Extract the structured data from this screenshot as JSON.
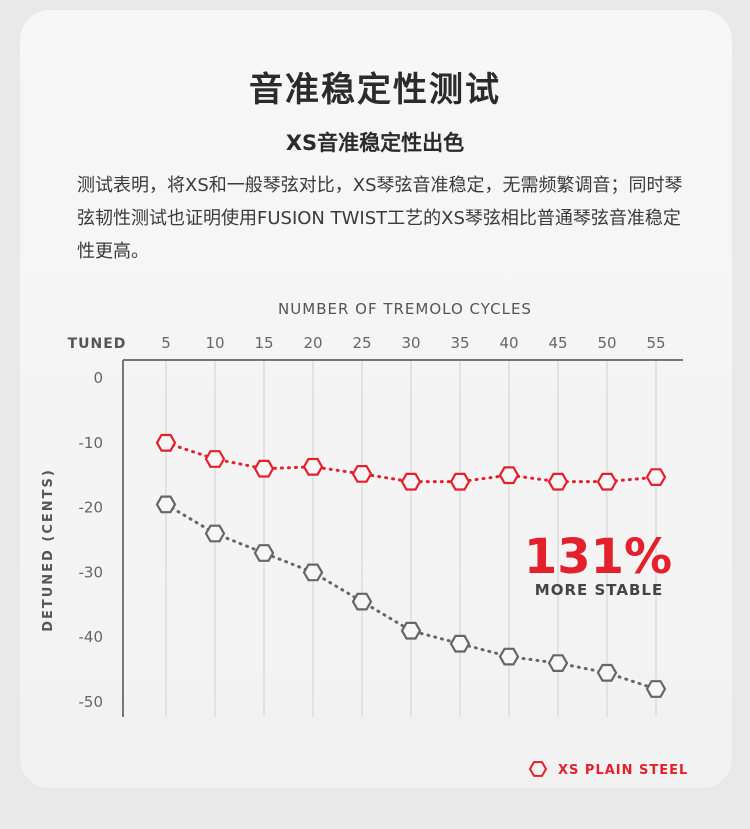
{
  "title": "音准稳定性测试",
  "subtitle": "XS音准稳定性出色",
  "description": "测试表明，将XS和一般琴弦对比，XS琴弦音准稳定，无需频繁调音；同时琴弦韧性测试也证明使用FUSION TWIST工艺的XS琴弦相比普通琴弦音准稳定性更高。",
  "colors": {
    "accent": "#e3202b",
    "gray_series": "#666666"
  },
  "chart_data": {
    "type": "line",
    "title": "",
    "xlabel": "NUMBER OF TREMOLO CYCLES",
    "ylabel": "DETUNED (CENTS)",
    "x_start_label": "TUNED",
    "x": [
      5,
      10,
      15,
      20,
      25,
      30,
      35,
      40,
      45,
      50,
      55
    ],
    "ylim": [
      -52,
      0
    ],
    "yticks": [
      0,
      -10,
      -20,
      -30,
      -40,
      -50
    ],
    "grid": true,
    "series": [
      {
        "name": "XS PLAIN STEEL",
        "color": "#e3202b",
        "values": [
          -10,
          -12.5,
          -14,
          -13.7,
          -14.8,
          -16,
          -16,
          -15,
          -16,
          -16,
          -15.3
        ]
      },
      {
        "name": "",
        "color": "#666666",
        "values": [
          -19.5,
          -24,
          -27,
          -30,
          -34.5,
          -39,
          -41,
          -43,
          -44,
          -45.5,
          -48
        ]
      }
    ],
    "legend_position": "bottom-right",
    "annotation": {
      "value": "131%",
      "text": "MORE STABLE"
    }
  }
}
